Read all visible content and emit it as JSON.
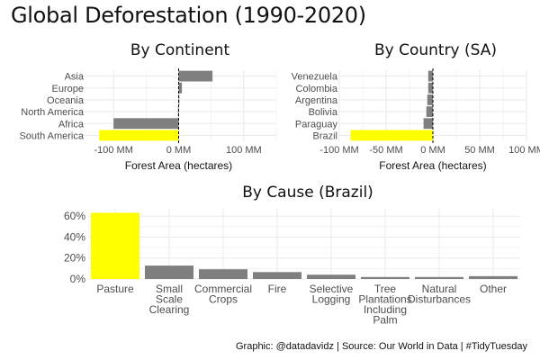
{
  "title": "Global Deforestation (1990-2020)",
  "caption": "Graphic: @datadavidz | Source: Our World in Data | #TidyTuesday",
  "colors": {
    "highlight": "#ffff00",
    "bar": "#7f7f7f",
    "grid": "#ebebeb",
    "zero_line": "#000000"
  },
  "chart_data": [
    {
      "id": "continent",
      "type": "bar",
      "orientation": "horizontal",
      "title": "By Continent",
      "xlabel": "Forest Area (hectares)",
      "categories": [
        "Asia",
        "Europe",
        "Oceania",
        "North America",
        "Africa",
        "South America"
      ],
      "values": [
        52000000,
        5000000,
        1000000,
        -1000000,
        -100000000,
        -122000000
      ],
      "highlight": "South America",
      "xlim": [
        -150000000,
        150000000
      ],
      "xticks": [
        -100000000,
        0,
        100000000
      ],
      "xtick_labels": [
        "-100 MM",
        "0 MM",
        "100 MM"
      ]
    },
    {
      "id": "country",
      "type": "bar",
      "orientation": "horizontal",
      "title": "By Country (SA)",
      "xlabel": "Forest Area (hectares)",
      "categories": [
        "Venezuela",
        "Colombia",
        "Argentina",
        "Bolivia",
        "Paraguay",
        "Brazil"
      ],
      "values": [
        -5000000,
        -5000000,
        -6000000,
        -7000000,
        -10000000,
        -88000000
      ],
      "highlight": "Brazil",
      "xlim": [
        -100000000,
        100000000
      ],
      "xticks": [
        -100000000,
        -50000000,
        0,
        50000000,
        100000000
      ],
      "xtick_labels": [
        "-100 MM",
        "-50 MM",
        "0 MM",
        "50 MM",
        "100 MM"
      ]
    },
    {
      "id": "cause",
      "type": "bar",
      "title": "By Cause (Brazil)",
      "ylabel": "",
      "categories": [
        "Pasture",
        "Small Scale Clearing",
        "Commercial Crops",
        "Fire",
        "Selective Logging",
        "Tree Plantations Including Palm",
        "Natural Disturbances",
        "Other"
      ],
      "category_lines": [
        [
          "Pasture"
        ],
        [
          "Small",
          "Scale",
          "Clearing"
        ],
        [
          "Commercial",
          "Crops"
        ],
        [
          "Fire"
        ],
        [
          "Selective",
          "Logging"
        ],
        [
          "Tree",
          "Plantations",
          "Including",
          "Palm"
        ],
        [
          "Natural",
          "Disturbances"
        ],
        [
          "Other"
        ]
      ],
      "values": [
        0.632,
        0.128,
        0.093,
        0.066,
        0.041,
        0.019,
        0.019,
        0.027
      ],
      "highlight": "Pasture",
      "ylim": [
        0,
        0.67
      ],
      "yticks": [
        0,
        0.2,
        0.4,
        0.6
      ],
      "ytick_labels": [
        "0%",
        "20%",
        "40%",
        "60%"
      ]
    }
  ]
}
